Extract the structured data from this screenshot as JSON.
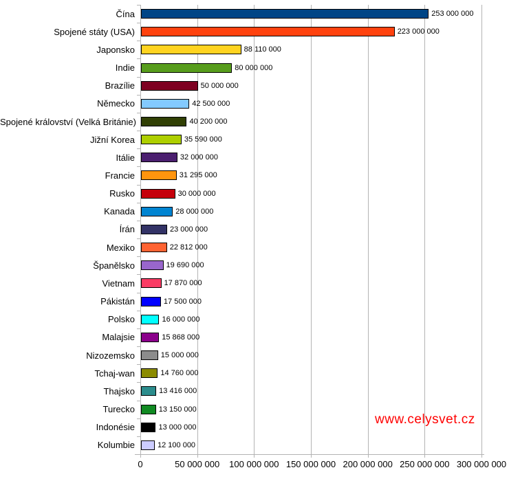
{
  "chart_data": {
    "type": "bar",
    "orientation": "horizontal",
    "title": "",
    "xlabel": "",
    "ylabel": "",
    "grid": true,
    "legend": false,
    "xlim": [
      0,
      300000000
    ],
    "x_ticks": [
      0,
      50000000,
      100000000,
      150000000,
      200000000,
      250000000,
      300000000
    ],
    "x_tick_labels": [
      "0",
      "50 000 000",
      "100 000 000",
      "150 000 000",
      "200 000 000",
      "250 000 000",
      "300 000 000"
    ],
    "categories": [
      "Čína",
      "Spojené státy (USA)",
      "Japonsko",
      "Indie",
      "Brazílie",
      "Německo",
      "Spojené království (Velká Británie)",
      "Jižní Korea",
      "Itálie",
      "Francie",
      "Rusko",
      "Kanada",
      "Írán",
      "Mexiko",
      "Španělsko",
      "Vietnam",
      "Pákistán",
      "Polsko",
      "Malajsie",
      "Nizozemsko",
      "Tchaj-wan",
      "Thajsko",
      "Turecko",
      "Indonésie",
      "Kolumbie"
    ],
    "values": [
      253000000,
      223000000,
      88110000,
      80000000,
      50000000,
      42500000,
      40200000,
      35590000,
      32000000,
      31295000,
      30000000,
      28000000,
      23000000,
      22812000,
      19690000,
      17870000,
      17500000,
      16000000,
      15868000,
      15000000,
      14760000,
      13416000,
      13150000,
      13000000,
      12100000
    ],
    "value_labels": [
      "253 000 000",
      "223 000 000",
      "88 110 000",
      "80 000 000",
      "50 000 000",
      "42 500 000",
      "40 200 000",
      "35 590 000",
      "32 000 000",
      "31 295 000",
      "30 000 000",
      "28 000 000",
      "23 000 000",
      "22 812 000",
      "19 690 000",
      "17 870 000",
      "17 500 000",
      "16 000 000",
      "15 868 000",
      "15 000 000",
      "14 760 000",
      "13 416 000",
      "13 150 000",
      "13 000 000",
      "12 100 000"
    ],
    "bar_colors": [
      "#004586",
      "#FF420E",
      "#FFD320",
      "#579D1C",
      "#7E0021",
      "#83CAFF",
      "#314004",
      "#AECF00",
      "#4B1F6F",
      "#FF950E",
      "#C5000B",
      "#0084D1",
      "#333366",
      "#FF6332",
      "#9966CC",
      "#FA3C64",
      "#0000FF",
      "#00FFFF",
      "#8B008B",
      "#8C8C8C",
      "#8B8B00",
      "#2B8C8C",
      "#108A22",
      "#000000",
      "#CCCCFF"
    ],
    "bar_border_color": "#000000",
    "axis_color": "#b3b3b3"
  },
  "watermark": {
    "text": "www.celysvet.cz",
    "color": "#ff0000"
  }
}
